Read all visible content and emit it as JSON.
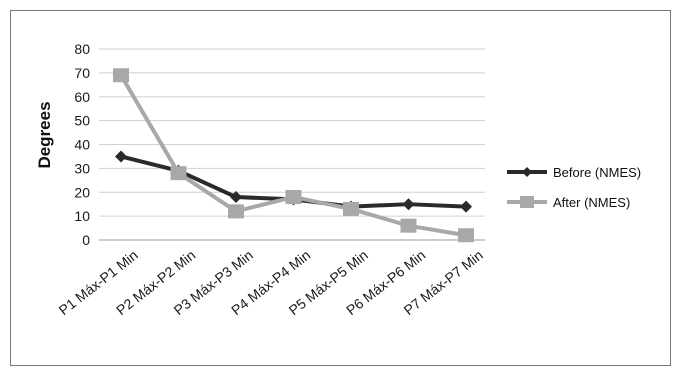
{
  "chart_data": {
    "type": "line",
    "title": "",
    "xlabel": "",
    "ylabel": "Degrees",
    "ylim": [
      0,
      80
    ],
    "yticks": [
      0,
      10,
      20,
      30,
      40,
      50,
      60,
      70,
      80
    ],
    "grid": true,
    "legend_position": "right",
    "categories": [
      "P1 Máx-P1 Min",
      "P2 Máx-P2 Min",
      "P3 Máx-P3 Min",
      "P4 Máx-P4 Min",
      "P5 Máx-P5 Min",
      "P6 Máx-P6 Min",
      "P7 Máx-P7 Min"
    ],
    "series": [
      {
        "name": "Before (NMES)",
        "values": [
          35,
          29,
          18,
          17,
          14,
          15,
          14
        ],
        "color": "#2a2a2a",
        "marker": "diamond"
      },
      {
        "name": "After (NMES)",
        "values": [
          69,
          28,
          12,
          18,
          13,
          6,
          2
        ],
        "color": "#a8a8a8",
        "marker": "square"
      }
    ]
  }
}
